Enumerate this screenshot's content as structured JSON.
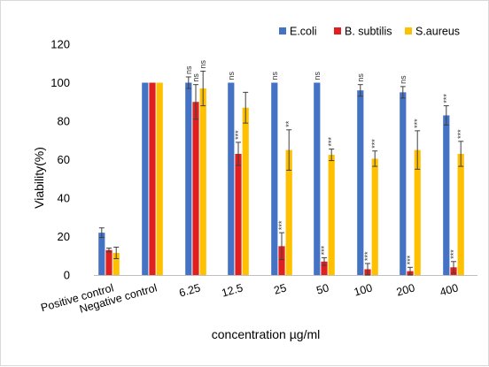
{
  "chart_data": {
    "type": "bar",
    "title": "",
    "xlabel": "concentration µg/ml",
    "ylabel": "Viability(%)",
    "ylim": [
      0,
      120
    ],
    "yticks": [
      0,
      20,
      40,
      60,
      80,
      100,
      120
    ],
    "grid": false,
    "legend_position": "top-right",
    "categories": [
      "Positive control",
      "Negative control",
      "6.25",
      "12.5",
      "25",
      "50",
      "100",
      "200",
      "400"
    ],
    "series": [
      {
        "name": "E.coli",
        "color": "#4472c4",
        "values": [
          22,
          100,
          100,
          100,
          100,
          100,
          96,
          95,
          83
        ],
        "errors": [
          2.5,
          0,
          3,
          0,
          0,
          0,
          3,
          3,
          5
        ],
        "significance": [
          "",
          "",
          "ns",
          "ns",
          "ns",
          "ns",
          "ns",
          "ns",
          "***"
        ]
      },
      {
        "name": "B. subtilis",
        "color": "#e0201f",
        "values": [
          13,
          100,
          90,
          63,
          15,
          7,
          3,
          2,
          4
        ],
        "errors": [
          1,
          0,
          9,
          6,
          7,
          2,
          3,
          2,
          3
        ],
        "significance": [
          "",
          "",
          "ns",
          "***",
          "***",
          "***",
          "***",
          "***",
          "***"
        ]
      },
      {
        "name": "S.aureus",
        "color": "#ffc000",
        "values": [
          11.5,
          100,
          97,
          87,
          65,
          62.5,
          60.5,
          65,
          63
        ],
        "errors": [
          3,
          0,
          9,
          8,
          10.5,
          3,
          4,
          10,
          6.5
        ],
        "significance": [
          "",
          "",
          "ns",
          "",
          "**",
          "***",
          "***",
          "***",
          "***"
        ]
      }
    ]
  }
}
